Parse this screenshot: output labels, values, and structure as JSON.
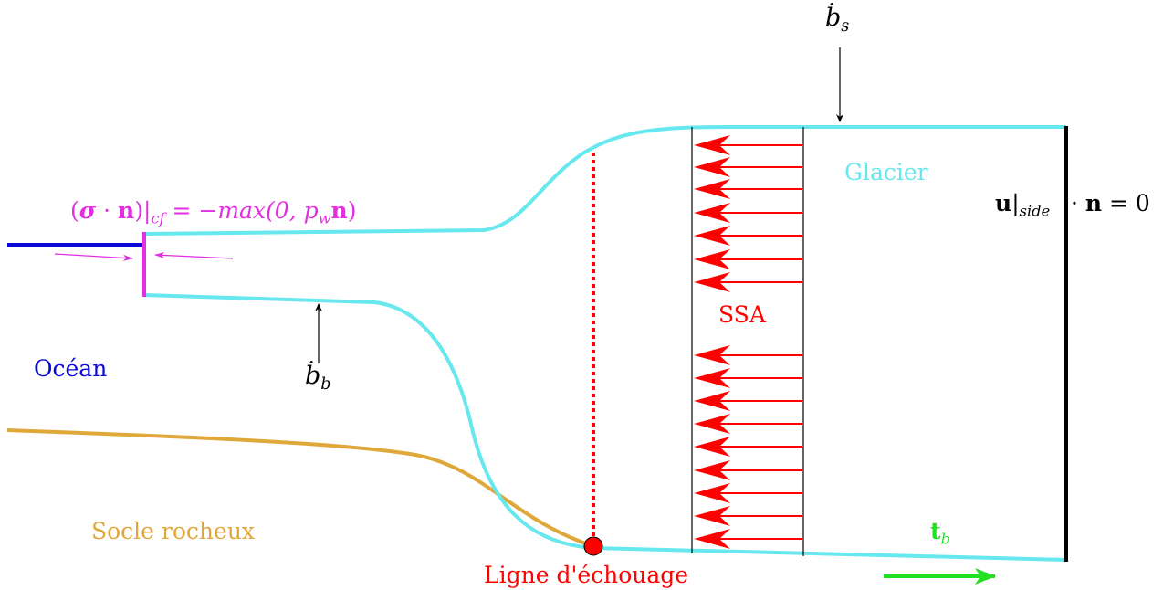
{
  "labels": {
    "ocean": "Océan",
    "bedrock": "Socle rocheux",
    "glacier": "Glacier",
    "ssa": "SSA",
    "grounding_line": "Ligne d'échouage",
    "calving_front_bc": {
      "open": "(",
      "sigma": "σ",
      "dot": " · ",
      "n1": "n",
      "close_bar": ")|",
      "sub": "cf",
      "eq": " = −max(0, p",
      "pw_sub": "w",
      "n2": "n",
      "end": ")"
    },
    "side_bc": {
      "u": "u",
      "bar": "|",
      "sub": "side",
      "dot": " · ",
      "n": "n",
      "eq": " = 0"
    },
    "surface_mass_balance": {
      "b": "ḃ",
      "sub": "s"
    },
    "basal_mass_balance": {
      "b": "ḃ",
      "sub": "b"
    },
    "basal_traction": {
      "t": "t",
      "sub": "b"
    }
  },
  "colors": {
    "ocean": "#0a0ad6",
    "ice": "#66e8ee",
    "bedrock": "#e0a83a",
    "calving_front": "#e12fe1",
    "ssa": "#ff0000",
    "traction": "#22e022",
    "annotation": "#000000"
  }
}
